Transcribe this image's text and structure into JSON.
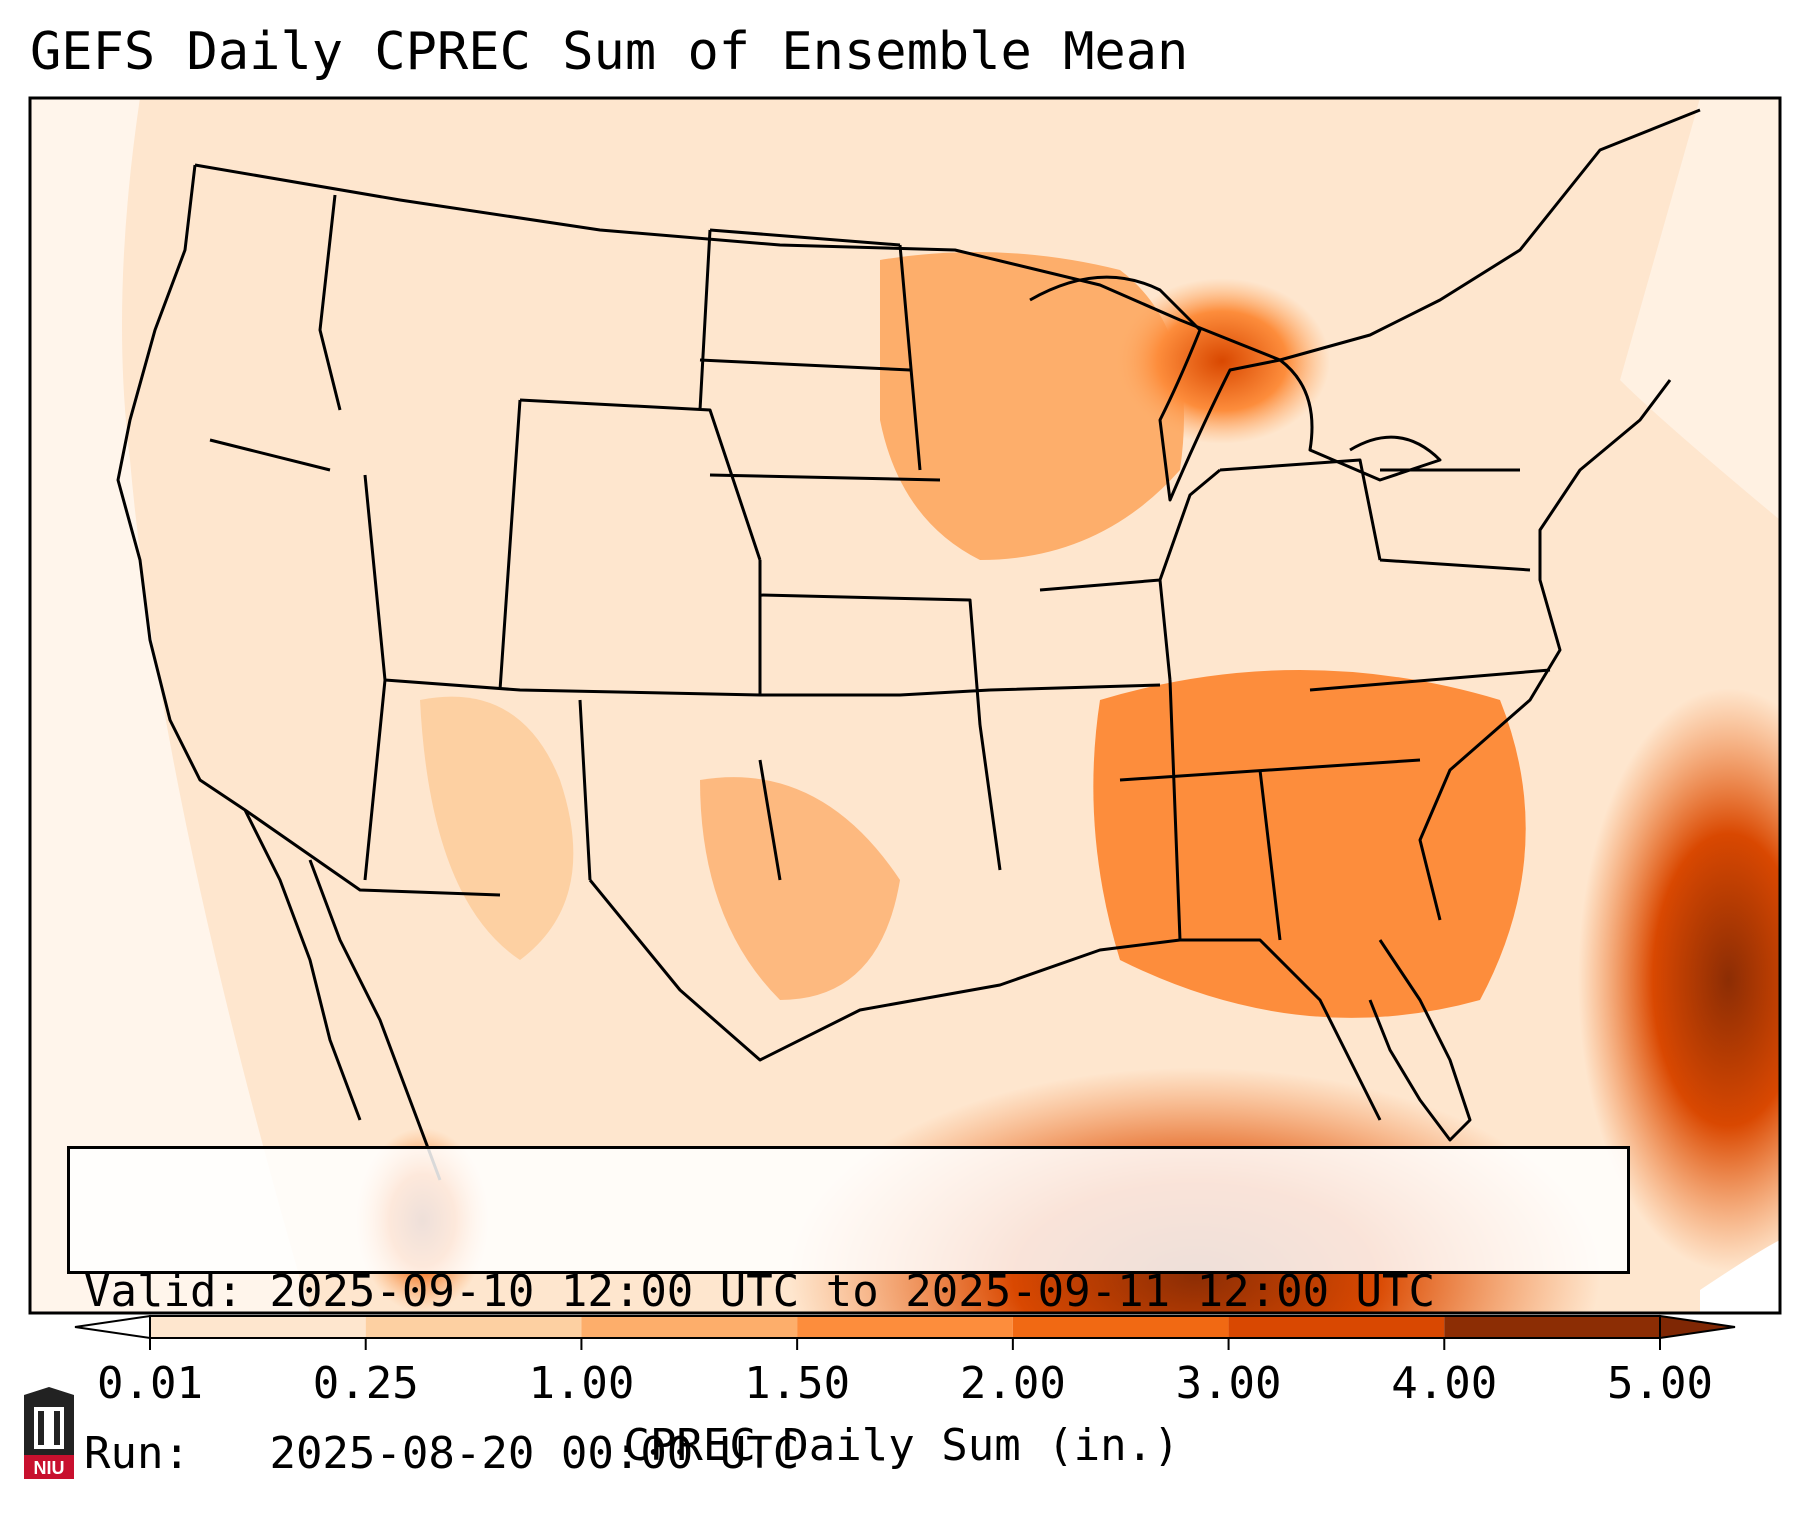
{
  "title": "GEFS Daily CPREC Sum of Ensemble Mean",
  "info": {
    "valid_label": "Valid:",
    "valid_value": "2025-09-10 12:00 UTC to 2025-09-11 12:00 UTC",
    "run_label": "Run:",
    "run_value": "2025-08-20 00:00 UTC"
  },
  "colorbar": {
    "label": "CPREC Daily Sum (in.)",
    "ticks": [
      "0.01",
      "0.25",
      "1.00",
      "1.50",
      "2.00",
      "3.00",
      "4.00",
      "5.00"
    ],
    "colors": [
      "#fff5eb",
      "#fee6ce",
      "#fdd0a2",
      "#fdae6b",
      "#fd8d3c",
      "#f16913",
      "#d94801",
      "#8c2d04"
    ],
    "under_color": "#ffffff",
    "over_color": "#7f2704"
  },
  "logo": {
    "text": "NIU",
    "color": "#c8102e"
  },
  "map_colors": {
    "ocean_far": "#fff5eb",
    "state_lines": "#000000"
  }
}
